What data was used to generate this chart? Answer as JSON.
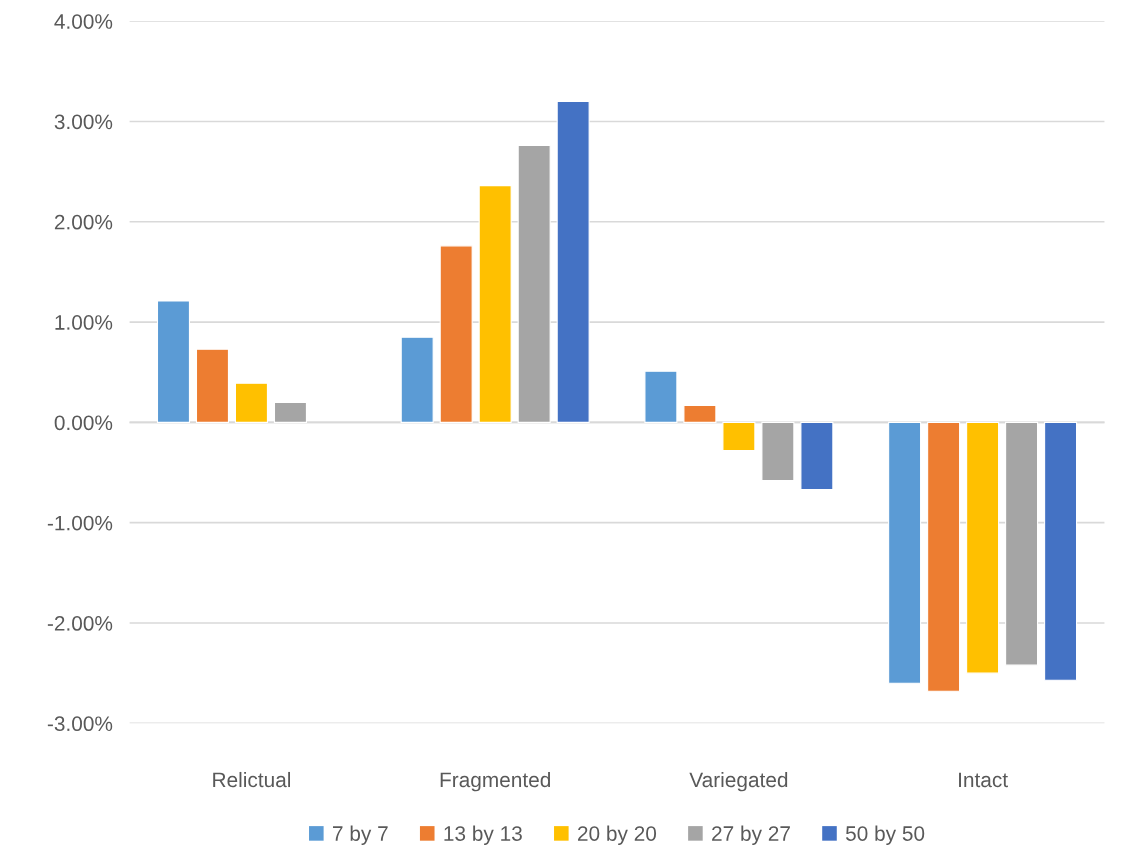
{
  "chart_data": {
    "type": "bar",
    "categories": [
      "Relictual",
      "Fragmented",
      "Variegated",
      "Intact"
    ],
    "series": [
      {
        "name": "7 by 7",
        "color": "#5b9bd5",
        "values": [
          1.21,
          0.85,
          0.51,
          -2.6
        ]
      },
      {
        "name": "13 by 13",
        "color": "#ed7d31",
        "values": [
          0.73,
          1.76,
          0.17,
          -2.68
        ]
      },
      {
        "name": "20 by 20",
        "color": "#ffc000",
        "values": [
          0.39,
          2.36,
          -0.28,
          -2.5
        ]
      },
      {
        "name": "27 by 27",
        "color": "#a5a5a5",
        "values": [
          0.2,
          2.76,
          -0.58,
          -2.42
        ]
      },
      {
        "name": "50 by 50",
        "color": "#4472c4",
        "values": [
          null,
          3.2,
          -0.67,
          -2.57
        ]
      }
    ],
    "ylim": [
      -3,
      4
    ],
    "yticks": [
      {
        "value": -3,
        "label": "-3.00%"
      },
      {
        "value": -2,
        "label": "-2.00%"
      },
      {
        "value": -1,
        "label": "-1.00%"
      },
      {
        "value": 0,
        "label": "0.00%"
      },
      {
        "value": 1,
        "label": "1.00%"
      },
      {
        "value": 2,
        "label": "2.00%"
      },
      {
        "value": 3,
        "label": "3.00%"
      },
      {
        "value": 4,
        "label": "4.00%"
      }
    ],
    "grid": "y",
    "legend": "bottom"
  }
}
